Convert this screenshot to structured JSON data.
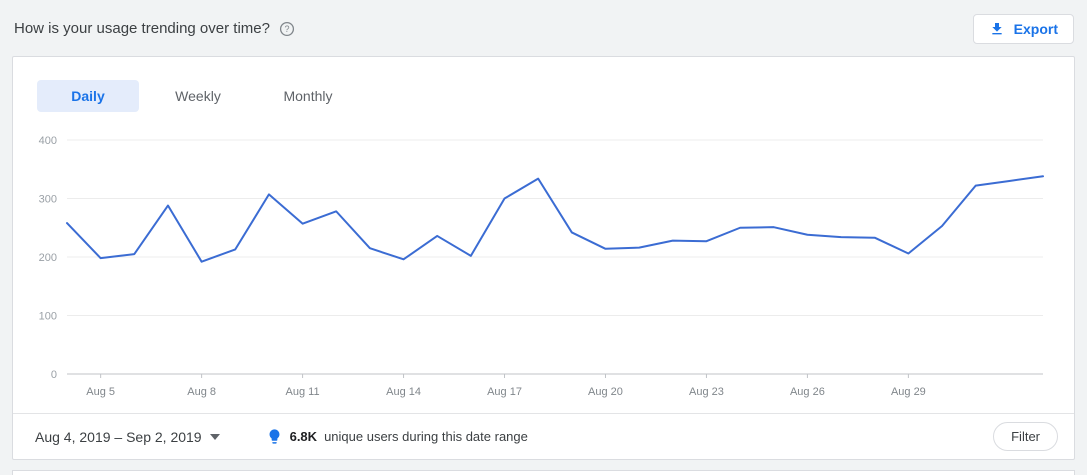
{
  "header": {
    "title": "How is your usage trending over time?",
    "export_label": "Export"
  },
  "tabs": [
    {
      "label": "Daily",
      "active": true
    },
    {
      "label": "Weekly",
      "active": false
    },
    {
      "label": "Monthly",
      "active": false
    }
  ],
  "chart_data": {
    "type": "line",
    "x": [
      "Aug 4",
      "Aug 5",
      "Aug 6",
      "Aug 7",
      "Aug 8",
      "Aug 9",
      "Aug 10",
      "Aug 11",
      "Aug 12",
      "Aug 13",
      "Aug 14",
      "Aug 15",
      "Aug 16",
      "Aug 17",
      "Aug 18",
      "Aug 19",
      "Aug 20",
      "Aug 21",
      "Aug 22",
      "Aug 23",
      "Aug 24",
      "Aug 25",
      "Aug 26",
      "Aug 27",
      "Aug 28",
      "Aug 29",
      "Aug 30",
      "Aug 31",
      "Sep 1",
      "Sep 2"
    ],
    "values": [
      258,
      198,
      205,
      288,
      192,
      213,
      307,
      257,
      278,
      215,
      196,
      236,
      202,
      300,
      334,
      242,
      214,
      216,
      228,
      227,
      250,
      251,
      238,
      234,
      233,
      206,
      253,
      322,
      330,
      338
    ],
    "title": "",
    "xlabel": "",
    "ylabel": "",
    "ylim": [
      0,
      400
    ],
    "yticks": [
      0,
      100,
      200,
      300,
      400
    ],
    "xtick_labels": [
      "Aug 5",
      "Aug 8",
      "Aug 11",
      "Aug 14",
      "Aug 17",
      "Aug 20",
      "Aug 23",
      "Aug 26",
      "Aug 29"
    ],
    "line_color": "#3b6cd3",
    "grid": true,
    "legend": "none"
  },
  "footer": {
    "date_range": "Aug 4, 2019 – Sep 2, 2019",
    "highlight_value": "6.8K",
    "highlight_text": "unique users during this date range",
    "filter_label": "Filter"
  },
  "colors": {
    "accent_blue": "#1a73e8",
    "line_blue": "#3b6cd3",
    "page_bg": "#f1f3f4",
    "axis_text": "#9aa0a6"
  }
}
